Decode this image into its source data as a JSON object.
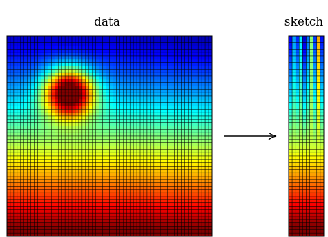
{
  "labels": {
    "data": "data",
    "sketch": "sketch"
  },
  "panels": {
    "data": {
      "rows": 60,
      "cols": 60,
      "colormap": "jet"
    },
    "sketch": {
      "rows": 60,
      "cols": 10,
      "colormap": "jet"
    }
  },
  "arrow": {
    "direction": "right",
    "color": "#000000"
  }
}
